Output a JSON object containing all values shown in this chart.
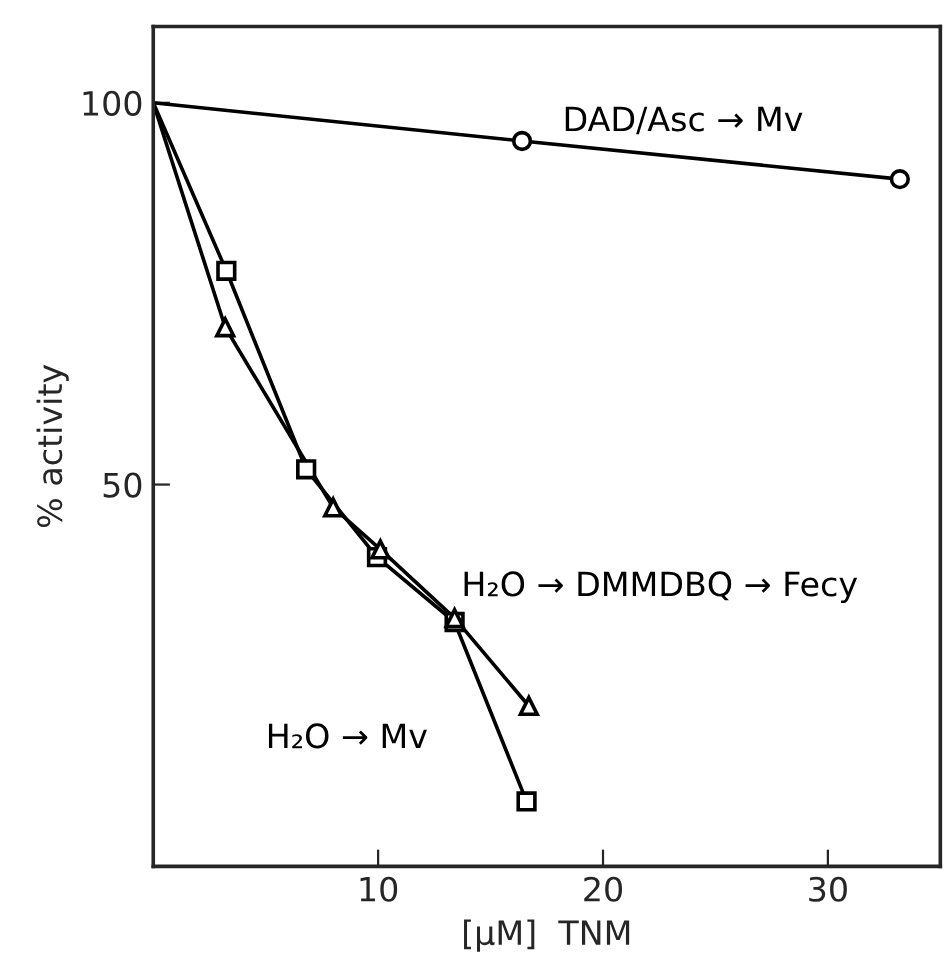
{
  "chart_data": {
    "type": "line",
    "xlabel": "[μM]  TNM",
    "ylabel": "% activity",
    "xlim": [
      0,
      35
    ],
    "ylim": [
      0,
      110
    ],
    "xticks": [
      10,
      20,
      30
    ],
    "yticks": [
      50,
      100
    ],
    "grid": false,
    "legend": false,
    "line_style": "solid",
    "series": [
      {
        "name": "DAD/Asc → Mv",
        "color": "#000000",
        "marker": "circle",
        "x": [
          0,
          16.4,
          33.2
        ],
        "values": [
          100,
          95,
          90
        ]
      },
      {
        "name": "H₂O → DMMDBQ → Fecy",
        "color": "#000000",
        "marker": "triangle",
        "x": [
          0,
          3.2,
          8.0,
          10.1,
          13.4,
          16.7
        ],
        "values": [
          100,
          70.6,
          47,
          41.5,
          32.5,
          21
        ]
      },
      {
        "name": "H₂O → Mv",
        "color": "#000000",
        "marker": "square",
        "x": [
          0,
          3.25,
          6.8,
          9.95,
          13.4,
          16.6
        ],
        "values": [
          100,
          78,
          52,
          40.5,
          32,
          8.5
        ]
      }
    ]
  }
}
